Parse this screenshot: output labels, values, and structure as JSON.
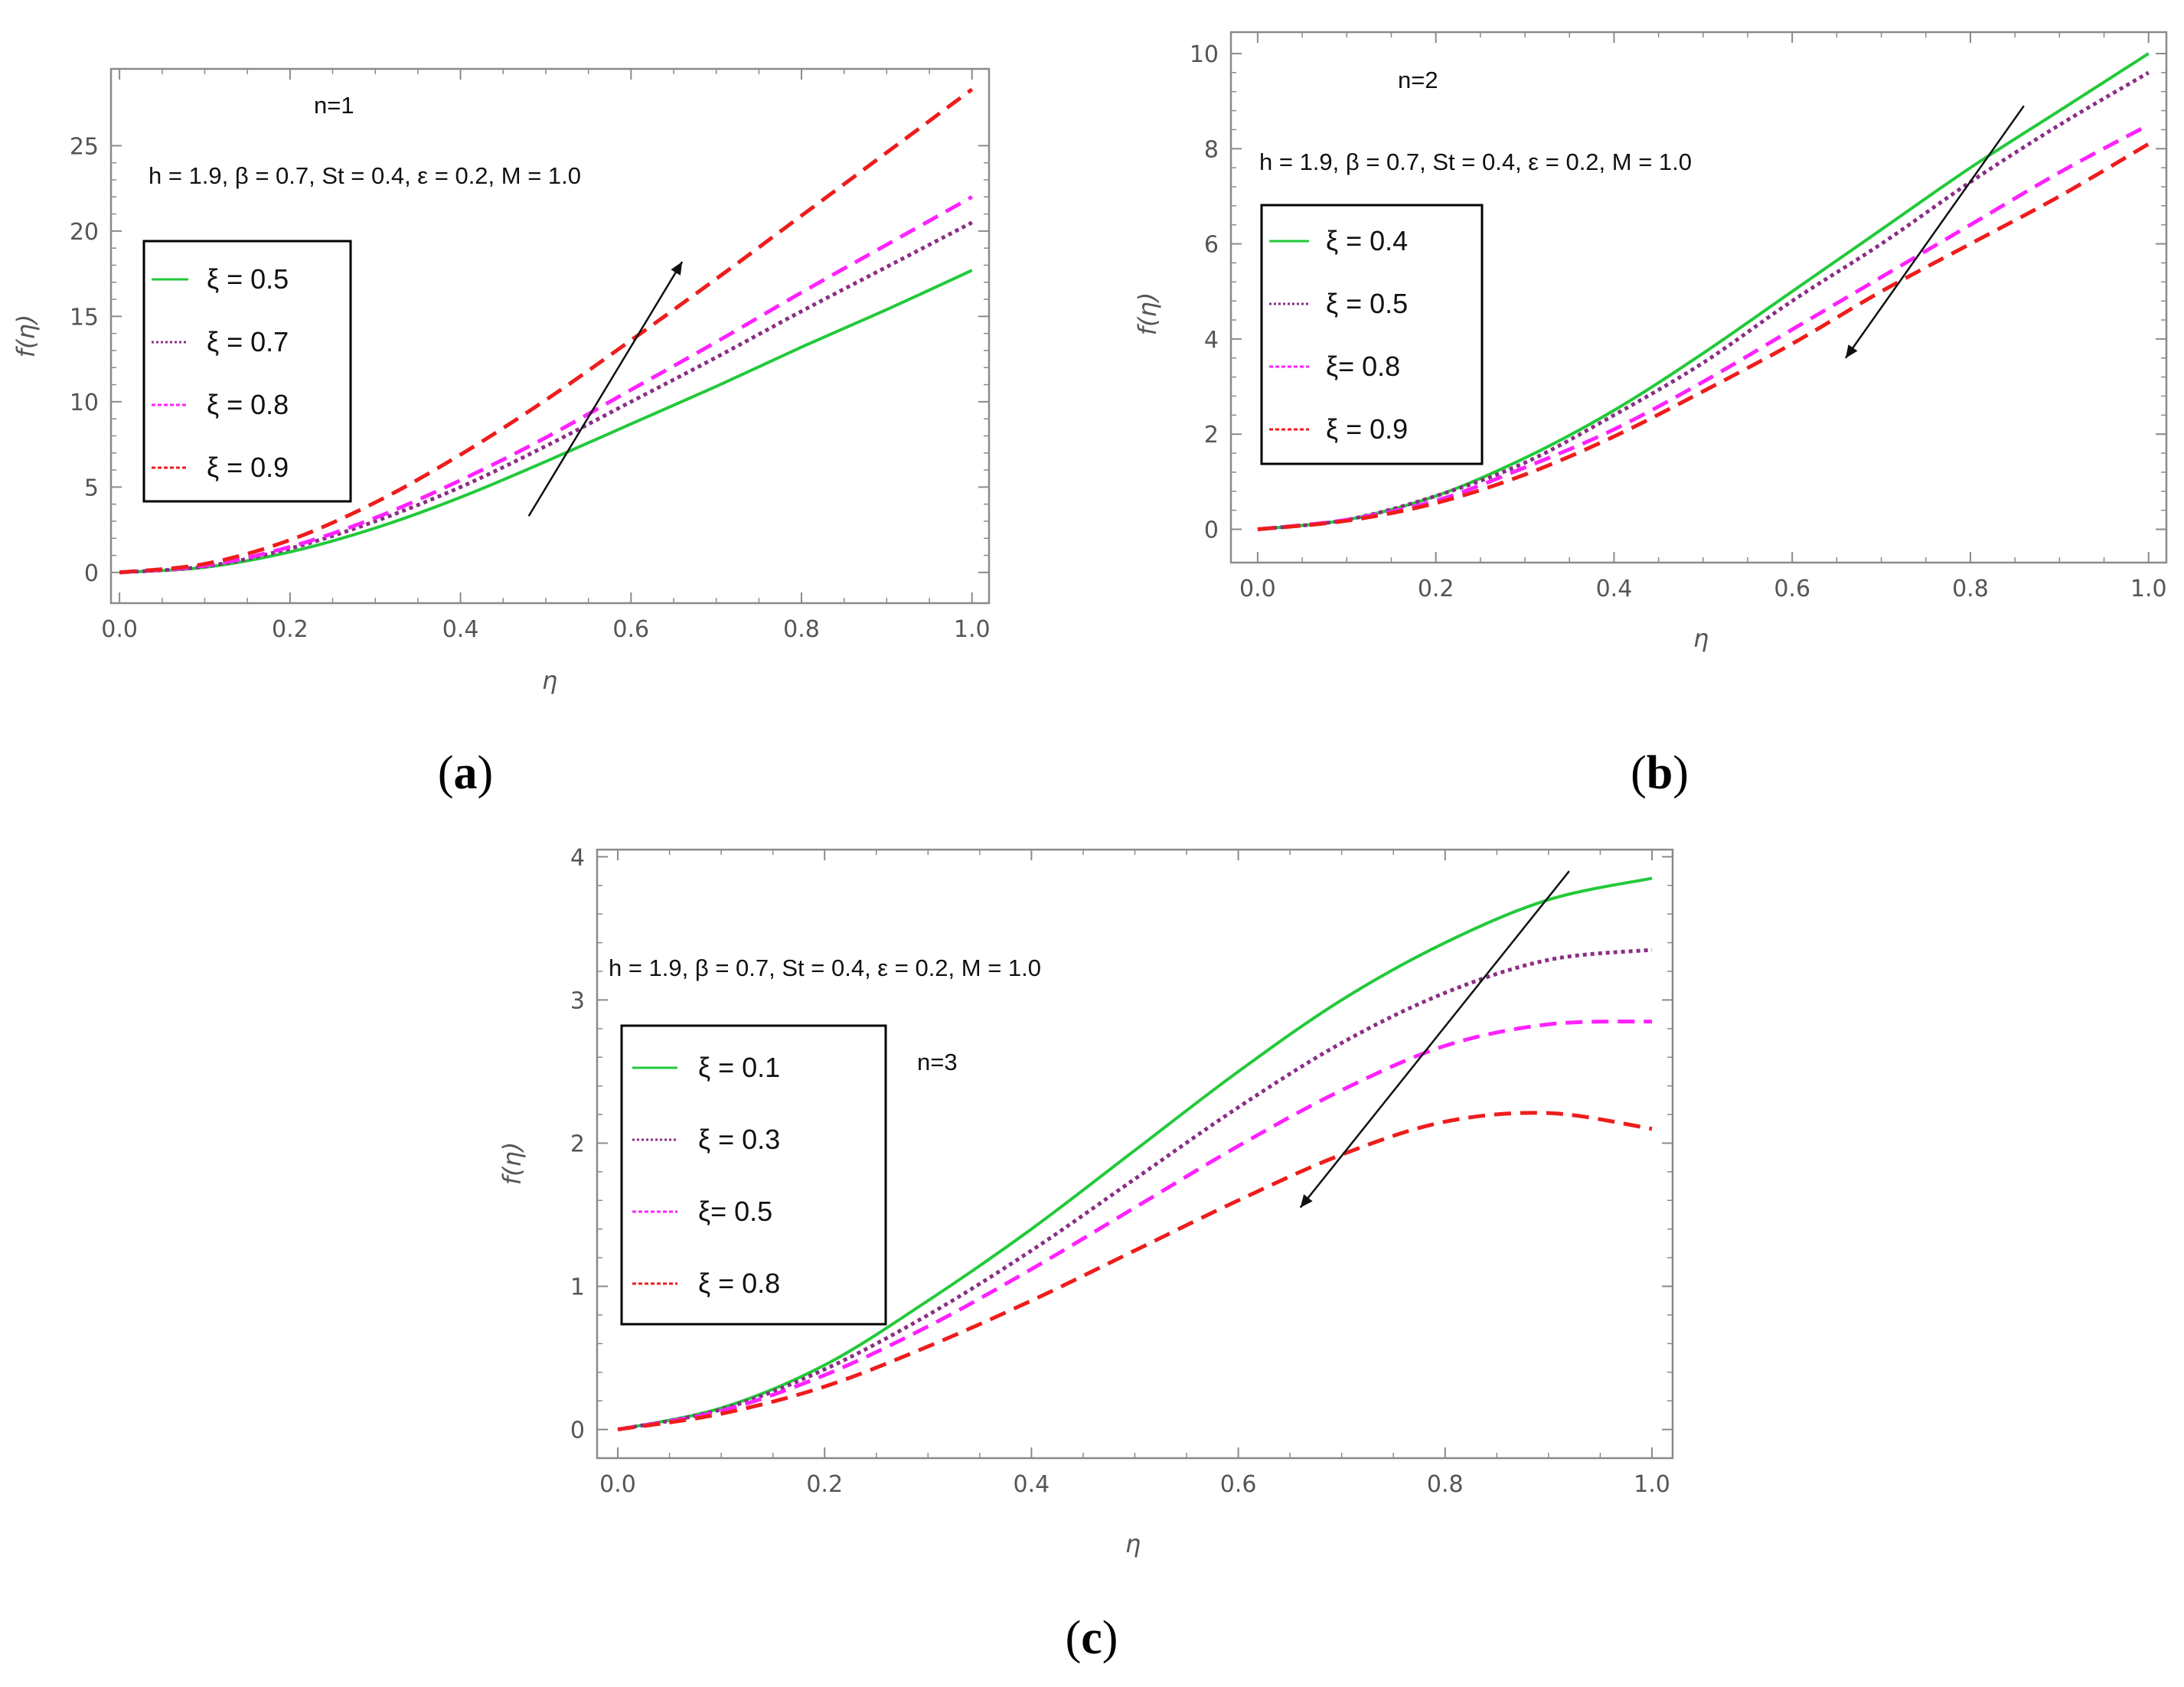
{
  "colors": {
    "green": "#22c93a",
    "purple": "#8b2d86",
    "magenta": "#ff22ff",
    "red": "#ee1c1c",
    "frame": "#8a8a8a",
    "arrow": "#111111"
  },
  "chart_data": [
    {
      "panel": "(a)",
      "panel_paren_open": "(",
      "panel_letter": "a",
      "panel_paren_close": ")",
      "type": "line",
      "n_label": "n=1",
      "params": "h = 1.9,  β = 0.7, St = 0.4, ε = 0.2, M = 1.0",
      "xlabel": "η",
      "ylabel": "f(η)",
      "xlim": [
        -0.01,
        1.02
      ],
      "ylim": [
        -1.8,
        29.5
      ],
      "xticks": [
        0.0,
        0.2,
        0.4,
        0.6,
        0.8,
        1.0
      ],
      "xtick_labels": [
        "0.0",
        "0.2",
        "0.4",
        "0.6",
        "0.8",
        "1.0"
      ],
      "yticks": [
        0,
        5,
        10,
        15,
        20,
        25
      ],
      "ytick_labels": [
        "0",
        "5",
        "10",
        "15",
        "20",
        "25"
      ],
      "x": [
        0,
        0.1,
        0.2,
        0.3,
        0.4,
        0.5,
        0.6,
        0.7,
        0.8,
        0.9,
        1.0
      ],
      "series": [
        {
          "name": "ξ = 0.5",
          "color_key": "green",
          "style": "solid",
          "values": [
            0,
            0.3,
            1.2,
            2.6,
            4.4,
            6.5,
            8.7,
            10.9,
            13.2,
            15.4,
            17.7
          ]
        },
        {
          "name": "ξ = 0.7",
          "color_key": "purple",
          "style": "dot",
          "values": [
            0,
            0.35,
            1.4,
            3.0,
            5.0,
            7.4,
            10.0,
            12.6,
            15.3,
            17.9,
            20.5
          ]
        },
        {
          "name": "ξ = 0.8",
          "color_key": "magenta",
          "style": "dash",
          "values": [
            0,
            0.4,
            1.5,
            3.2,
            5.4,
            7.9,
            10.7,
            13.5,
            16.4,
            19.2,
            22.0
          ]
        },
        {
          "name": "ξ = 0.9",
          "color_key": "red",
          "style": "dash",
          "values": [
            0,
            0.5,
            1.9,
            4.1,
            6.9,
            10.1,
            13.6,
            17.2,
            20.9,
            24.6,
            28.3
          ]
        }
      ],
      "legend_position": "left",
      "arrow": {
        "from": [
          0.48,
          3.3
        ],
        "to": [
          0.66,
          18.2
        ]
      }
    },
    {
      "panel": "(b)",
      "panel_paren_open": "(",
      "panel_letter": "b",
      "panel_paren_close": ")",
      "type": "line",
      "n_label": "n=2",
      "params": "h = 1.9,  β = 0.7, St = 0.4, ε = 0.2, M = 1.0",
      "xlabel": "η",
      "ylabel": "f(η)",
      "xlim": [
        -0.03,
        1.02
      ],
      "ylim": [
        -0.7,
        10.45
      ],
      "xticks": [
        0.0,
        0.2,
        0.4,
        0.6,
        0.8,
        1.0
      ],
      "xtick_labels": [
        "0.0",
        "0.2",
        "0.4",
        "0.6",
        "0.8",
        "1.0"
      ],
      "yticks": [
        0,
        2,
        4,
        6,
        8,
        10
      ],
      "ytick_labels": [
        "0",
        "2",
        "4",
        "6",
        "8",
        "10"
      ],
      "x": [
        0,
        0.1,
        0.2,
        0.3,
        0.4,
        0.5,
        0.6,
        0.7,
        0.8,
        0.9,
        1.0
      ],
      "series": [
        {
          "name": "ξ = 0.4",
          "color_key": "green",
          "style": "solid",
          "values": [
            0,
            0.2,
            0.7,
            1.5,
            2.5,
            3.7,
            5.0,
            6.3,
            7.6,
            8.8,
            10.0
          ]
        },
        {
          "name": "ξ = 0.5",
          "color_key": "purple",
          "style": "dot",
          "values": [
            0,
            0.2,
            0.7,
            1.4,
            2.4,
            3.5,
            4.8,
            6.0,
            7.3,
            8.5,
            9.6
          ]
        },
        {
          "name": "ξ= 0.8",
          "color_key": "magenta",
          "style": "dash",
          "values": [
            0,
            0.2,
            0.6,
            1.3,
            2.1,
            3.1,
            4.2,
            5.3,
            6.4,
            7.5,
            8.5
          ]
        },
        {
          "name": "ξ = 0.9",
          "color_key": "red",
          "style": "dash",
          "values": [
            0,
            0.18,
            0.55,
            1.15,
            1.95,
            2.9,
            3.9,
            5.0,
            6.0,
            7.0,
            8.1
          ]
        }
      ],
      "legend_position": "left",
      "arrow": {
        "from": [
          0.86,
          8.9
        ],
        "to": [
          0.66,
          3.6
        ]
      }
    },
    {
      "panel": "(c)",
      "panel_paren_open": "(",
      "panel_letter": "c",
      "panel_paren_close": ")",
      "type": "line",
      "n_label": "n=3",
      "params": "h = 1.9,  β = 0.7, St = 0.4, ε = 0.2, M = 1.0",
      "xlabel": "η",
      "ylabel": "f(η)",
      "xlim": [
        -0.02,
        1.02
      ],
      "ylim": [
        -0.2,
        4.05
      ],
      "xticks": [
        0.0,
        0.2,
        0.4,
        0.6,
        0.8,
        1.0
      ],
      "xtick_labels": [
        "0.0",
        "0.2",
        "0.4",
        "0.6",
        "0.8",
        "1.0"
      ],
      "yticks": [
        0,
        1,
        2,
        3,
        4
      ],
      "ytick_labels": [
        "0",
        "1",
        "2",
        "3",
        "4"
      ],
      "x": [
        0,
        0.1,
        0.2,
        0.3,
        0.4,
        0.5,
        0.6,
        0.7,
        0.8,
        0.9,
        1.0
      ],
      "series": [
        {
          "name": "ξ = 0.1",
          "color_key": "green",
          "style": "solid",
          "values": [
            0,
            0.15,
            0.45,
            0.9,
            1.4,
            1.95,
            2.5,
            3.0,
            3.4,
            3.7,
            3.85
          ]
        },
        {
          "name": "ξ = 0.3",
          "color_key": "purple",
          "style": "dot",
          "values": [
            0,
            0.14,
            0.42,
            0.8,
            1.25,
            1.75,
            2.25,
            2.7,
            3.05,
            3.28,
            3.35
          ]
        },
        {
          "name": "ξ= 0.5",
          "color_key": "magenta",
          "style": "dash",
          "values": [
            0,
            0.13,
            0.38,
            0.72,
            1.12,
            1.55,
            1.98,
            2.37,
            2.68,
            2.83,
            2.85
          ]
        },
        {
          "name": "ξ = 0.8",
          "color_key": "red",
          "style": "dash",
          "values": [
            0,
            0.11,
            0.3,
            0.58,
            0.9,
            1.25,
            1.6,
            1.92,
            2.15,
            2.21,
            2.1
          ]
        }
      ],
      "legend_position": "left",
      "arrow": {
        "from": [
          0.92,
          3.9
        ],
        "to": [
          0.66,
          1.55
        ]
      }
    }
  ]
}
